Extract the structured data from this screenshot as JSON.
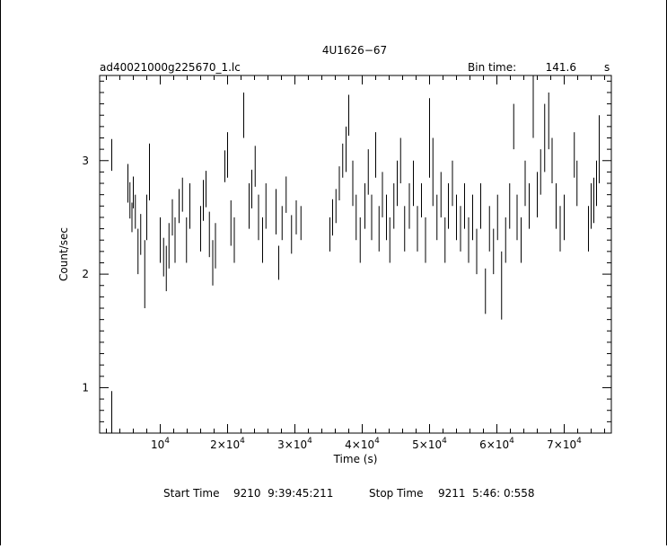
{
  "chart_data": {
    "type": "scatter",
    "title": "4U1626−67",
    "file_label": "ad40021000g225670_1.lc",
    "bin_time_label": "Bin time:",
    "bin_time_value": "141.6",
    "bin_time_unit": "s",
    "xlabel": "Time (s)",
    "ylabel": "Count/sec",
    "xlim": [
      1000,
      77000
    ],
    "ylim": [
      0.6,
      3.75
    ],
    "x_ticks": [
      {
        "value": 10000,
        "mantissa": "",
        "exp": "4"
      },
      {
        "value": 20000,
        "mantissa": "2×",
        "exp": "4"
      },
      {
        "value": 30000,
        "mantissa": "3×",
        "exp": "4"
      },
      {
        "value": 40000,
        "mantissa": "4×",
        "exp": "4"
      },
      {
        "value": 50000,
        "mantissa": "5×",
        "exp": "4"
      },
      {
        "value": 60000,
        "mantissa": "6×",
        "exp": "4"
      },
      {
        "value": 70000,
        "mantissa": "7×",
        "exp": "4"
      }
    ],
    "y_ticks": [
      1,
      2,
      3
    ],
    "footer": {
      "start_label": "Start Time",
      "start_value": "9210  9:39:45:211",
      "stop_label": "Stop Time",
      "stop_value": "9211  5:46: 0:558"
    },
    "points": [
      [
        2800,
        3.05,
        0.14
      ],
      [
        2800,
        0.75,
        0.22
      ],
      [
        5200,
        2.8,
        0.17
      ],
      [
        5500,
        2.65,
        0.16
      ],
      [
        5800,
        2.5,
        0.13
      ],
      [
        6000,
        2.72,
        0.14
      ],
      [
        6300,
        2.55,
        0.15
      ],
      [
        6700,
        2.2,
        0.2
      ],
      [
        7100,
        2.35,
        0.18
      ],
      [
        7700,
        2.0,
        0.3
      ],
      [
        8000,
        2.5,
        0.2
      ],
      [
        8400,
        2.9,
        0.25
      ],
      [
        10000,
        2.3,
        0.2
      ],
      [
        10500,
        2.15,
        0.17
      ],
      [
        10900,
        2.05,
        0.2
      ],
      [
        11300,
        2.25,
        0.2
      ],
      [
        11800,
        2.5,
        0.16
      ],
      [
        12200,
        2.3,
        0.2
      ],
      [
        12800,
        2.6,
        0.15
      ],
      [
        13300,
        2.7,
        0.15
      ],
      [
        13900,
        2.3,
        0.2
      ],
      [
        14400,
        2.6,
        0.2
      ],
      [
        16000,
        2.4,
        0.2
      ],
      [
        16400,
        2.65,
        0.18
      ],
      [
        16800,
        2.75,
        0.16
      ],
      [
        17300,
        2.35,
        0.2
      ],
      [
        17800,
        2.1,
        0.2
      ],
      [
        18200,
        2.25,
        0.2
      ],
      [
        19600,
        2.95,
        0.14
      ],
      [
        20000,
        3.05,
        0.2
      ],
      [
        20500,
        2.45,
        0.2
      ],
      [
        21000,
        2.3,
        0.2
      ],
      [
        22400,
        3.4,
        0.2
      ],
      [
        23200,
        2.6,
        0.2
      ],
      [
        23600,
        2.75,
        0.17
      ],
      [
        24100,
        2.95,
        0.18
      ],
      [
        24600,
        2.5,
        0.2
      ],
      [
        25200,
        2.3,
        0.2
      ],
      [
        25700,
        2.6,
        0.2
      ],
      [
        27200,
        2.55,
        0.2
      ],
      [
        27600,
        2.1,
        0.15
      ],
      [
        28100,
        2.45,
        0.15
      ],
      [
        28700,
        2.7,
        0.16
      ],
      [
        29500,
        2.35,
        0.17
      ],
      [
        30200,
        2.5,
        0.15
      ],
      [
        30900,
        2.45,
        0.15
      ],
      [
        35200,
        2.35,
        0.15
      ],
      [
        35600,
        2.5,
        0.16
      ],
      [
        36100,
        2.6,
        0.15
      ],
      [
        36600,
        2.8,
        0.15
      ],
      [
        37100,
        3.0,
        0.15
      ],
      [
        37600,
        3.1,
        0.2
      ],
      [
        38000,
        3.4,
        0.18
      ],
      [
        38600,
        2.8,
        0.2
      ],
      [
        39100,
        2.5,
        0.2
      ],
      [
        39700,
        2.3,
        0.2
      ],
      [
        40400,
        2.6,
        0.2
      ],
      [
        40900,
        2.9,
        0.2
      ],
      [
        41400,
        2.5,
        0.2
      ],
      [
        42000,
        3.05,
        0.2
      ],
      [
        42500,
        2.4,
        0.2
      ],
      [
        43000,
        2.7,
        0.2
      ],
      [
        43600,
        2.5,
        0.2
      ],
      [
        44100,
        2.3,
        0.2
      ],
      [
        44700,
        2.6,
        0.2
      ],
      [
        45200,
        2.8,
        0.2
      ],
      [
        45700,
        3.0,
        0.2
      ],
      [
        46300,
        2.4,
        0.2
      ],
      [
        47000,
        2.6,
        0.2
      ],
      [
        47600,
        2.8,
        0.2
      ],
      [
        48200,
        2.4,
        0.2
      ],
      [
        48800,
        2.65,
        0.15
      ],
      [
        49400,
        2.3,
        0.2
      ],
      [
        50000,
        3.2,
        0.35
      ],
      [
        50500,
        2.9,
        0.3
      ],
      [
        51100,
        2.5,
        0.2
      ],
      [
        51700,
        2.7,
        0.2
      ],
      [
        52300,
        2.3,
        0.2
      ],
      [
        52800,
        2.6,
        0.2
      ],
      [
        53400,
        2.8,
        0.2
      ],
      [
        54000,
        2.5,
        0.2
      ],
      [
        54600,
        2.4,
        0.2
      ],
      [
        55200,
        2.6,
        0.2
      ],
      [
        55800,
        2.3,
        0.2
      ],
      [
        56400,
        2.5,
        0.2
      ],
      [
        57000,
        2.2,
        0.2
      ],
      [
        57600,
        2.6,
        0.2
      ],
      [
        58300,
        1.85,
        0.2
      ],
      [
        58900,
        2.4,
        0.2
      ],
      [
        59500,
        2.2,
        0.2
      ],
      [
        60100,
        2.5,
        0.2
      ],
      [
        60700,
        1.9,
        0.3
      ],
      [
        61300,
        2.3,
        0.2
      ],
      [
        61900,
        2.6,
        0.2
      ],
      [
        62500,
        3.3,
        0.2
      ],
      [
        63000,
        2.5,
        0.2
      ],
      [
        63600,
        2.3,
        0.2
      ],
      [
        64200,
        2.8,
        0.2
      ],
      [
        64800,
        2.6,
        0.2
      ],
      [
        65400,
        3.5,
        0.3
      ],
      [
        66000,
        2.7,
        0.2
      ],
      [
        66500,
        2.9,
        0.2
      ],
      [
        67100,
        3.2,
        0.3
      ],
      [
        67700,
        3.35,
        0.25
      ],
      [
        68200,
        3.0,
        0.2
      ],
      [
        68800,
        2.6,
        0.2
      ],
      [
        69400,
        2.4,
        0.2
      ],
      [
        70000,
        2.5,
        0.2
      ],
      [
        71500,
        3.05,
        0.2
      ],
      [
        71900,
        2.8,
        0.2
      ],
      [
        73600,
        2.4,
        0.2
      ],
      [
        74000,
        2.6,
        0.2
      ],
      [
        74400,
        2.65,
        0.2
      ],
      [
        74800,
        2.8,
        0.2
      ],
      [
        75200,
        3.1,
        0.3
      ]
    ]
  }
}
